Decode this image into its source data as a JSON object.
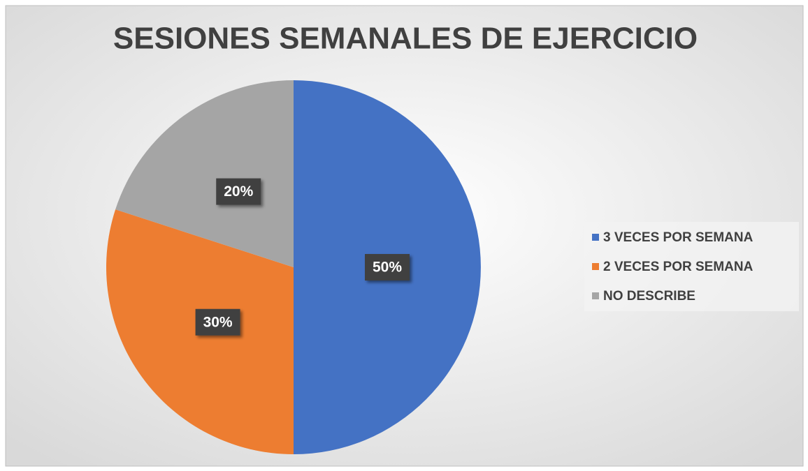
{
  "chart_data": {
    "type": "pie",
    "title": "SESIONES SEMANALES DE EJERCICIO",
    "categories": [
      "3 VECES POR SEMANA",
      "2 VECES POR SEMANA",
      "NO DESCRIBE"
    ],
    "values": [
      50,
      30,
      20
    ],
    "value_labels": [
      "50%",
      "30%",
      "20%"
    ],
    "colors": [
      "#4472c4",
      "#ed7d31",
      "#a5a5a5"
    ],
    "legend": "right"
  }
}
